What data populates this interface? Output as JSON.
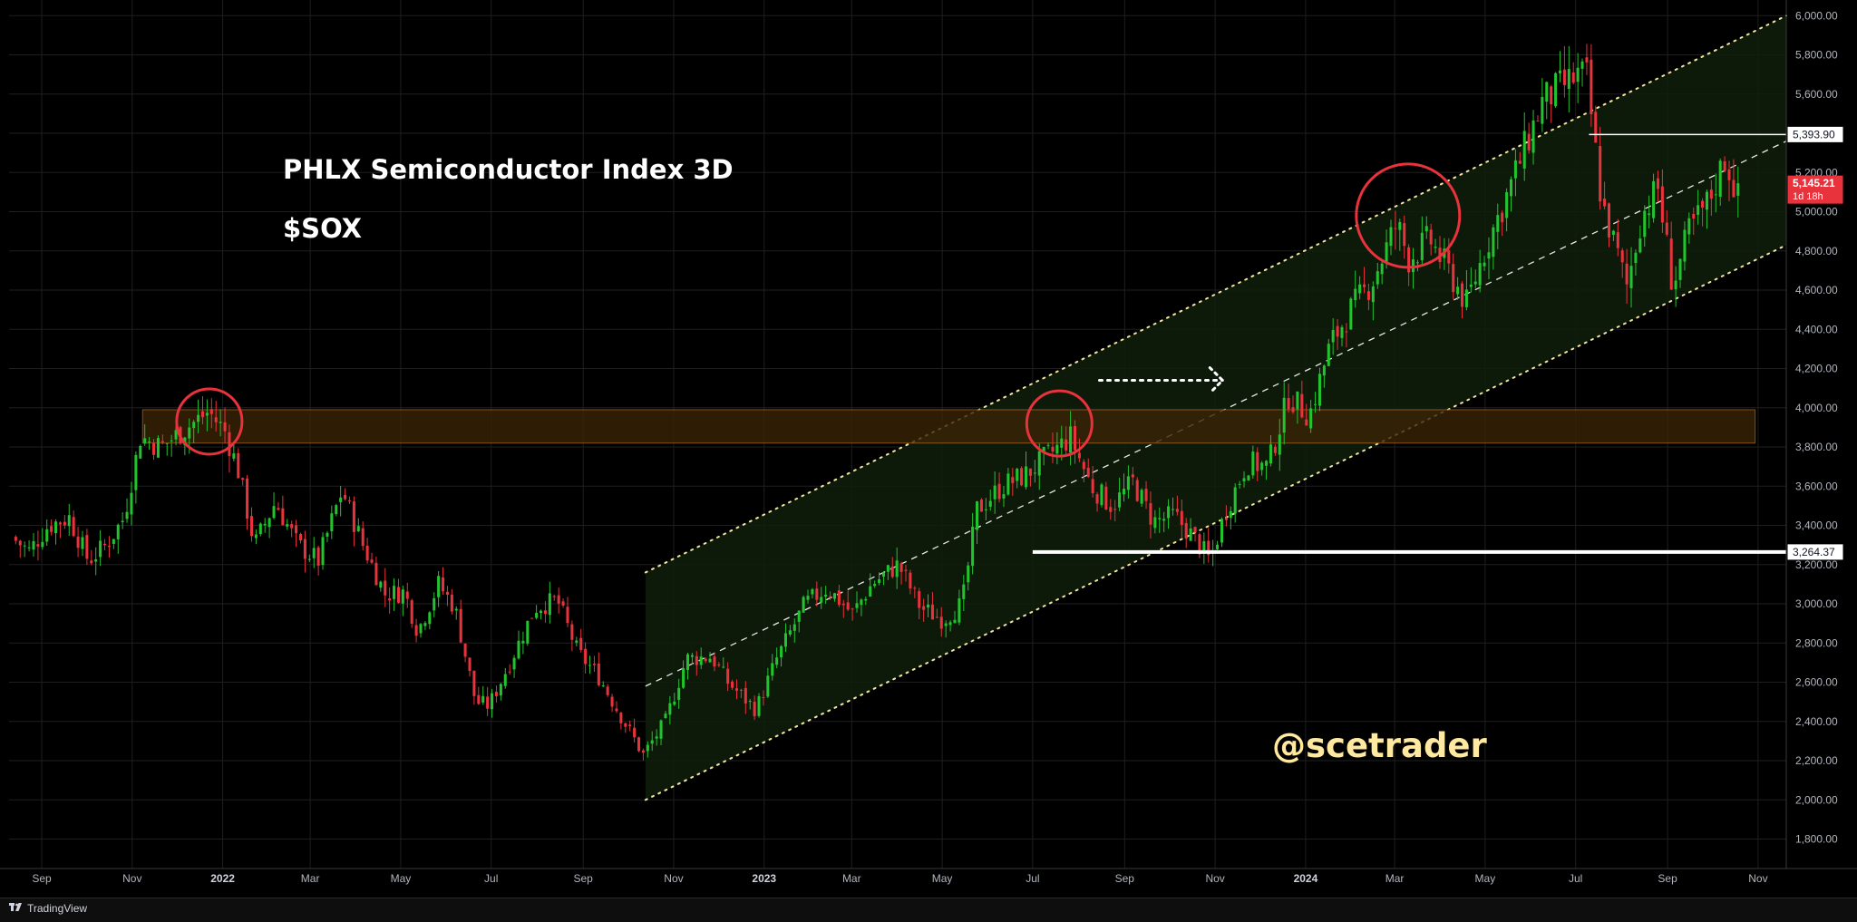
{
  "header": {
    "title": "PHLX Semiconductor Index 3D",
    "symbol": "$SOX",
    "watermark": "@scetrader"
  },
  "footer": {
    "brand": "TradingView"
  },
  "chart_data": {
    "type": "candlestick",
    "title": "PHLX Semiconductor Index 3D",
    "subtitle": "$SOX",
    "interval": "3D",
    "colors": {
      "up": "#22c32e",
      "down": "#e8323c",
      "background": "#000000",
      "grid": "#1f1f1f",
      "channel_fill": "#0f1f0c",
      "zone_fill": "#3a2306",
      "zone_border": "#a8661a",
      "circles": "#e8323c",
      "lines": "#ffffff",
      "last_price_badge": "#e8323c"
    },
    "x_axis": {
      "type": "date",
      "range": [
        "2021-08-10",
        "2024-11-20"
      ],
      "ticks": [
        {
          "date": "2021-09-01",
          "label": "Sep"
        },
        {
          "date": "2021-11-01",
          "label": "Nov"
        },
        {
          "date": "2022-01-01",
          "label": "2022",
          "bold": true
        },
        {
          "date": "2022-03-01",
          "label": "Mar"
        },
        {
          "date": "2022-05-01",
          "label": "May"
        },
        {
          "date": "2022-07-01",
          "label": "Jul"
        },
        {
          "date": "2022-09-01",
          "label": "Sep"
        },
        {
          "date": "2022-11-01",
          "label": "Nov"
        },
        {
          "date": "2023-01-01",
          "label": "2023",
          "bold": true
        },
        {
          "date": "2023-03-01",
          "label": "Mar"
        },
        {
          "date": "2023-05-01",
          "label": "May"
        },
        {
          "date": "2023-07-01",
          "label": "Jul"
        },
        {
          "date": "2023-09-01",
          "label": "Sep"
        },
        {
          "date": "2023-11-01",
          "label": "Nov"
        },
        {
          "date": "2024-01-01",
          "label": "2024",
          "bold": true
        },
        {
          "date": "2024-03-01",
          "label": "Mar"
        },
        {
          "date": "2024-05-01",
          "label": "May"
        },
        {
          "date": "2024-07-01",
          "label": "Jul"
        },
        {
          "date": "2024-09-01",
          "label": "Sep"
        },
        {
          "date": "2024-11-01",
          "label": "Nov"
        }
      ]
    },
    "y_axis": {
      "range": [
        1650,
        6080
      ],
      "position": "right",
      "ticks": [
        {
          "value": 1800,
          "label": "1,800.00"
        },
        {
          "value": 2000,
          "label": "2,000.00"
        },
        {
          "value": 2200,
          "label": "2,200.00"
        },
        {
          "value": 2400,
          "label": "2,400.00"
        },
        {
          "value": 2600,
          "label": "2,600.00"
        },
        {
          "value": 2800,
          "label": "2,800.00"
        },
        {
          "value": 3000,
          "label": "3,000.00"
        },
        {
          "value": 3200,
          "label": "3,200.00"
        },
        {
          "value": 3400,
          "label": "3,400.00"
        },
        {
          "value": 3600,
          "label": "3,600.00"
        },
        {
          "value": 3800,
          "label": "3,800.00"
        },
        {
          "value": 4000,
          "label": "4,000.00"
        },
        {
          "value": 4200,
          "label": "4,200.00"
        },
        {
          "value": 4400,
          "label": "4,400.00"
        },
        {
          "value": 4600,
          "label": "4,600.00"
        },
        {
          "value": 4800,
          "label": "4,800.00"
        },
        {
          "value": 5000,
          "label": "5,000.00"
        },
        {
          "value": 5200,
          "label": "5,200.00"
        },
        {
          "value": 5400,
          "label": "5,400.00"
        },
        {
          "value": 5600,
          "label": "5,600.00"
        },
        {
          "value": 5800,
          "label": "5,800.00"
        },
        {
          "value": 6000,
          "label": "6,000.00"
        }
      ]
    },
    "grid": true,
    "price_path": [
      [
        "2021-08-13",
        3340
      ],
      [
        "2021-08-25",
        3270
      ],
      [
        "2021-09-07",
        3400
      ],
      [
        "2021-09-21",
        3440
      ],
      [
        "2021-10-04",
        3220
      ],
      [
        "2021-10-16",
        3300
      ],
      [
        "2021-10-28",
        3440
      ],
      [
        "2021-11-08",
        3850
      ],
      [
        "2021-11-22",
        3800
      ],
      [
        "2021-12-06",
        3880
      ],
      [
        "2021-12-24",
        3980
      ],
      [
        "2022-01-04",
        3880
      ],
      [
        "2022-01-13",
        3680
      ],
      [
        "2022-01-24",
        3300
      ],
      [
        "2022-02-07",
        3520
      ],
      [
        "2022-02-22",
        3300
      ],
      [
        "2022-03-08",
        3220
      ],
      [
        "2022-03-24",
        3580
      ],
      [
        "2022-04-07",
        3300
      ],
      [
        "2022-04-22",
        3050
      ],
      [
        "2022-05-05",
        3060
      ],
      [
        "2022-05-14",
        2860
      ],
      [
        "2022-05-28",
        3100
      ],
      [
        "2022-06-08",
        2980
      ],
      [
        "2022-06-22",
        2500
      ],
      [
        "2022-07-01",
        2480
      ],
      [
        "2022-07-15",
        2700
      ],
      [
        "2022-08-01",
        2980
      ],
      [
        "2022-08-16",
        3020
      ],
      [
        "2022-08-30",
        2750
      ],
      [
        "2022-09-12",
        2640
      ],
      [
        "2022-09-27",
        2440
      ],
      [
        "2022-10-13",
        2230
      ],
      [
        "2022-10-28",
        2400
      ],
      [
        "2022-11-11",
        2720
      ],
      [
        "2022-11-28",
        2730
      ],
      [
        "2022-12-09",
        2600
      ],
      [
        "2022-12-28",
        2460
      ],
      [
        "2023-01-11",
        2720
      ],
      [
        "2023-01-30",
        3000
      ],
      [
        "2023-02-14",
        3080
      ],
      [
        "2023-03-03",
        2950
      ],
      [
        "2023-03-16",
        3100
      ],
      [
        "2023-04-03",
        3200
      ],
      [
        "2023-04-18",
        2980
      ],
      [
        "2023-05-03",
        2920
      ],
      [
        "2023-05-16",
        3000
      ],
      [
        "2023-05-26",
        3480
      ],
      [
        "2023-06-12",
        3600
      ],
      [
        "2023-06-28",
        3660
      ],
      [
        "2023-07-12",
        3750
      ],
      [
        "2023-07-28",
        3850
      ],
      [
        "2023-08-11",
        3600
      ],
      [
        "2023-08-25",
        3500
      ],
      [
        "2023-09-08",
        3620
      ],
      [
        "2023-09-22",
        3420
      ],
      [
        "2023-10-06",
        3450
      ],
      [
        "2023-10-20",
        3330
      ],
      [
        "2023-10-30",
        3220
      ],
      [
        "2023-11-10",
        3480
      ],
      [
        "2023-11-24",
        3720
      ],
      [
        "2023-12-08",
        3700
      ],
      [
        "2023-12-22",
        4060
      ],
      [
        "2024-01-05",
        3960
      ],
      [
        "2024-01-19",
        4320
      ],
      [
        "2024-02-02",
        4500
      ],
      [
        "2024-02-16",
        4640
      ],
      [
        "2024-03-04",
        4940
      ],
      [
        "2024-03-12",
        4760
      ],
      [
        "2024-03-26",
        4860
      ],
      [
        "2024-04-12",
        4640
      ],
      [
        "2024-04-20",
        4530
      ],
      [
        "2024-05-03",
        4820
      ],
      [
        "2024-05-17",
        5080
      ],
      [
        "2024-05-28",
        5300
      ],
      [
        "2024-06-10",
        5560
      ],
      [
        "2024-06-20",
        5620
      ],
      [
        "2024-07-05",
        5700
      ],
      [
        "2024-07-10",
        5680
      ],
      [
        "2024-07-20",
        5050
      ],
      [
        "2024-08-06",
        4620
      ],
      [
        "2024-08-16",
        4980
      ],
      [
        "2024-08-27",
        5120
      ],
      [
        "2024-09-06",
        4620
      ],
      [
        "2024-09-17",
        4900
      ],
      [
        "2024-09-30",
        5050
      ],
      [
        "2024-10-11",
        5270
      ],
      [
        "2024-10-17",
        5145
      ]
    ],
    "channel": {
      "start": "2022-10-13",
      "end": "2024-11-20",
      "upper": [
        3160,
        6000
      ],
      "middle": [
        2580,
        5360
      ],
      "lower": [
        2000,
        4830
      ]
    },
    "resistance_zone": {
      "start": "2021-11-08",
      "end": "2024-10-30",
      "top": 3990,
      "bottom": 3820
    },
    "support_line": {
      "start": "2023-07-01",
      "value": 3264.37,
      "label": "3,264.37"
    },
    "reference_line": {
      "start": "2024-07-10",
      "value": 5393.9,
      "label": "5,393.90"
    },
    "last_price": {
      "value": 5145.21,
      "label": "5,145.21",
      "countdown": "1d 18h"
    },
    "circles": [
      {
        "date": "2021-12-23",
        "value": 3930,
        "radius": 36
      },
      {
        "date": "2023-07-19",
        "value": 3920,
        "radius": 36
      },
      {
        "date": "2024-03-10",
        "value": 4980,
        "radius": 57
      }
    ],
    "arrow": {
      "from": "2023-08-15",
      "to": "2023-11-06",
      "value": 4140
    }
  }
}
